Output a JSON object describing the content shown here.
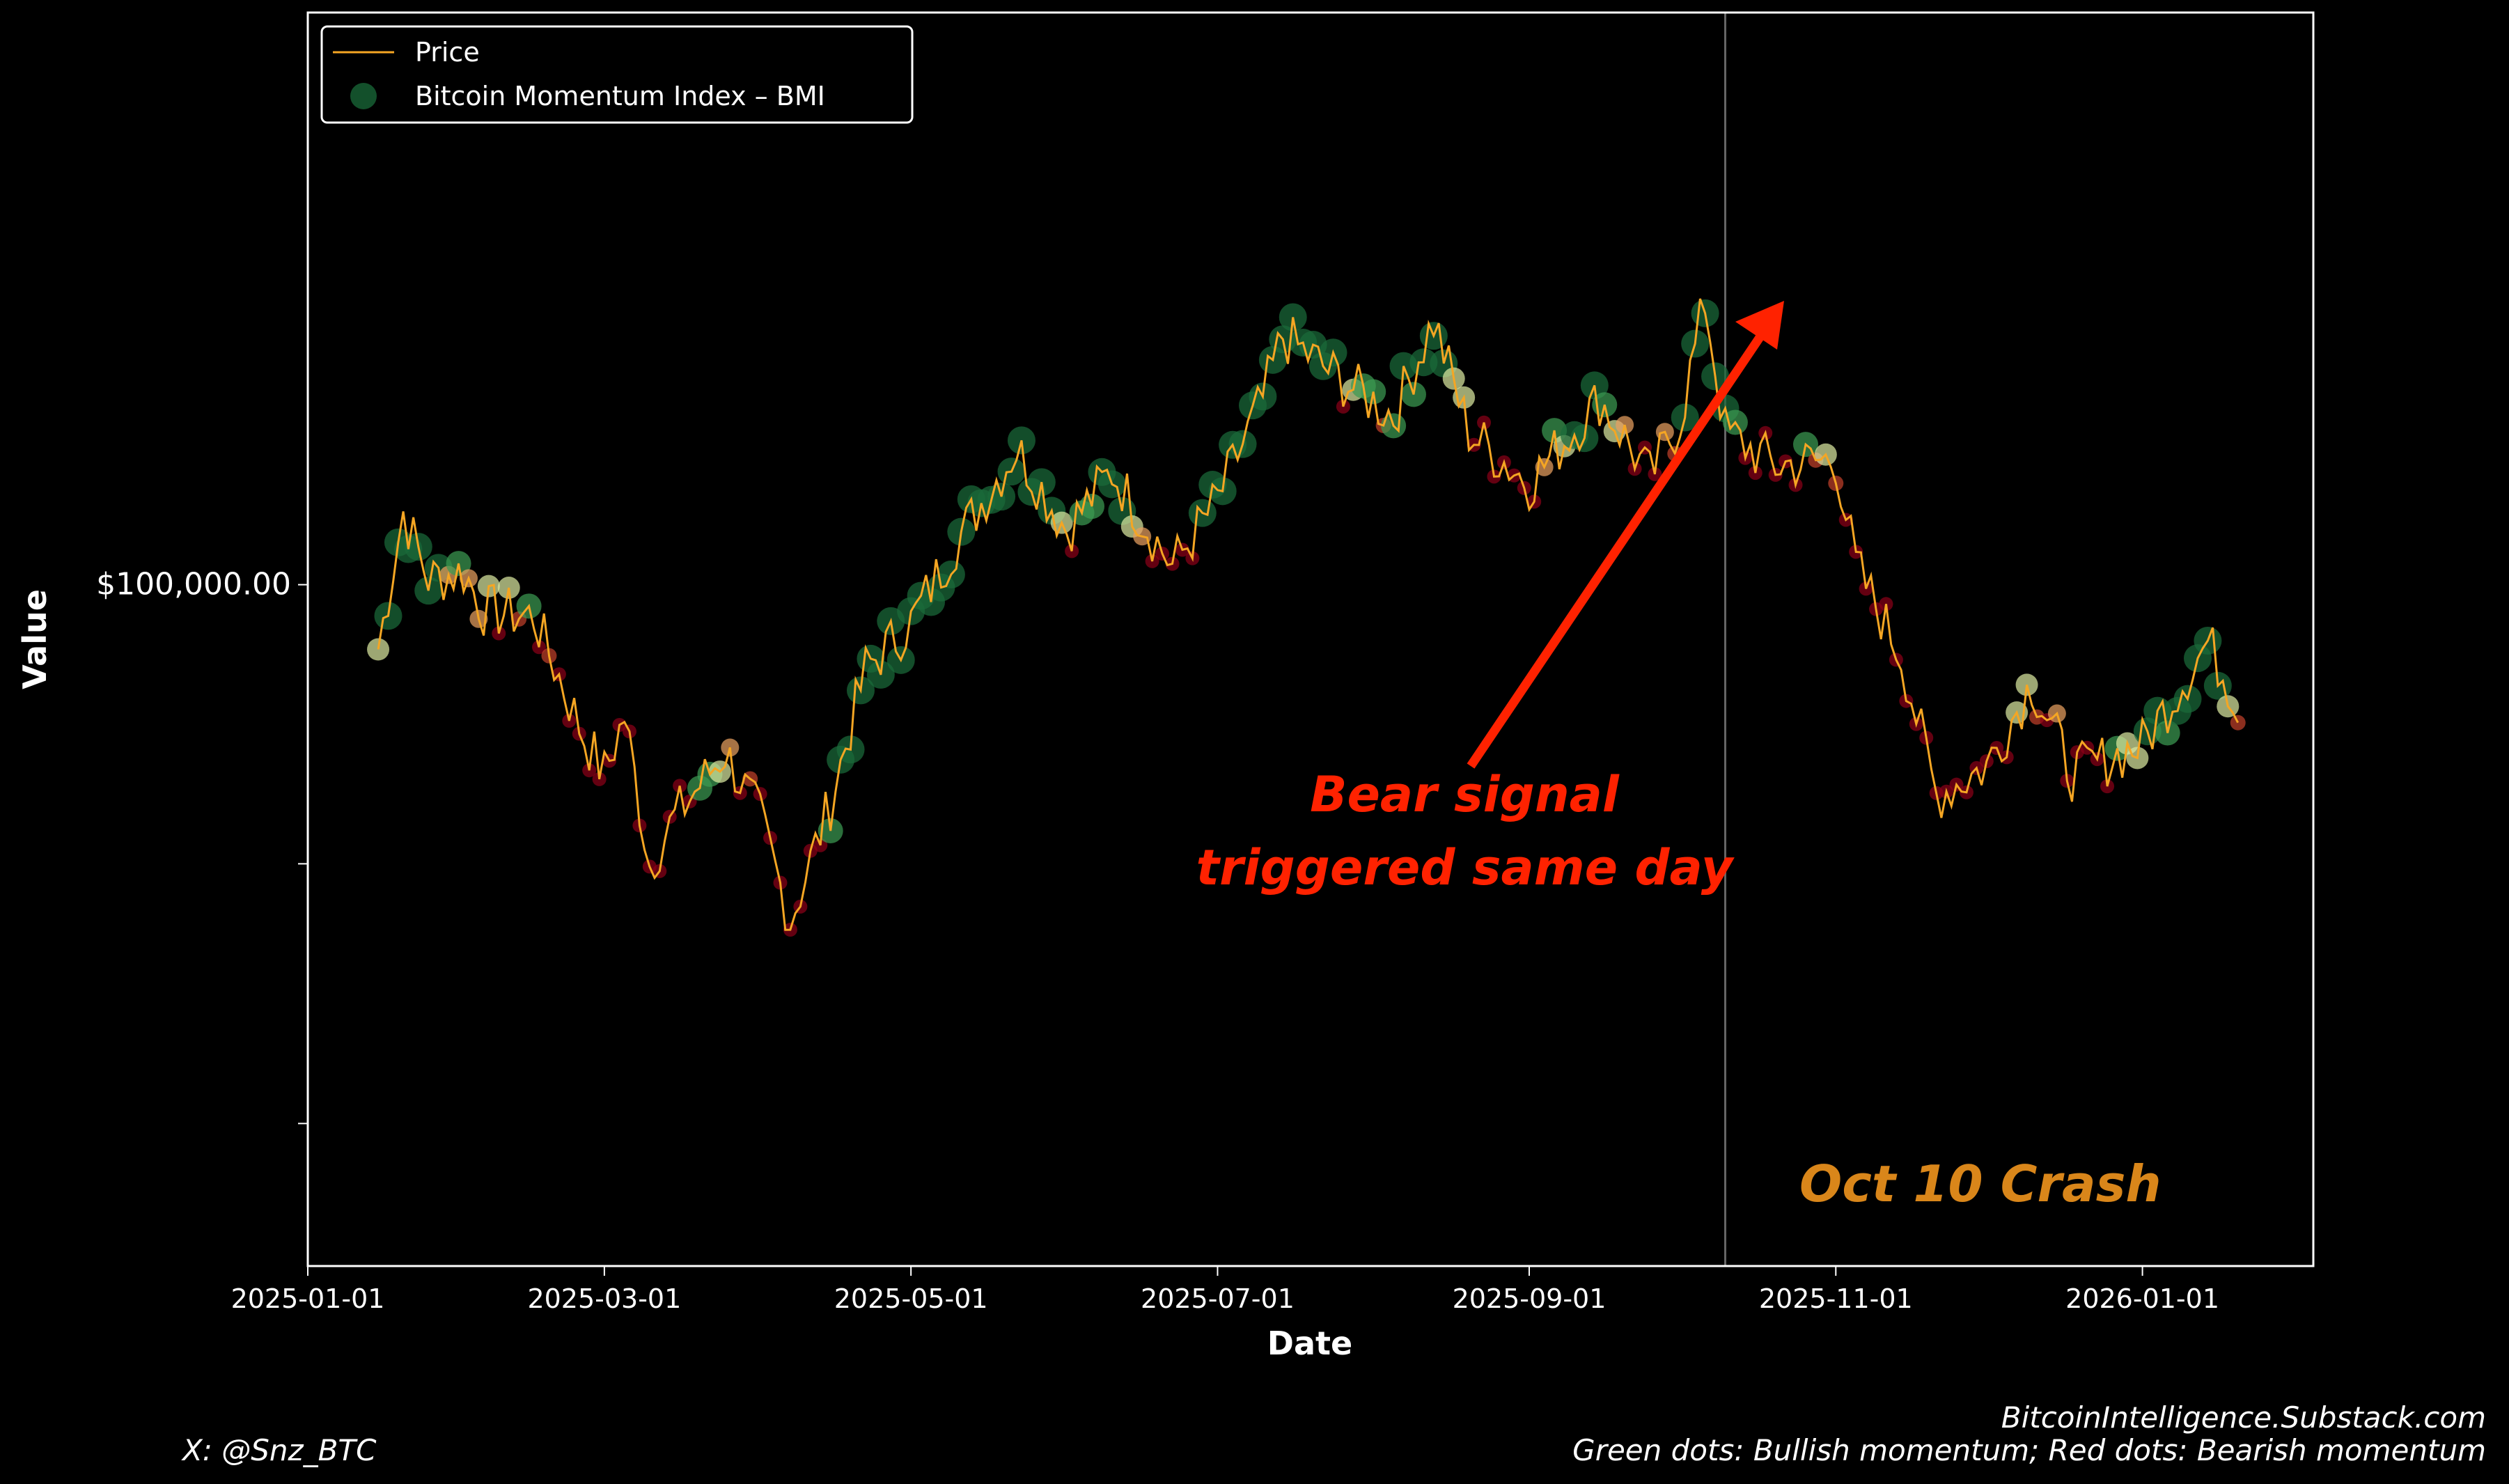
{
  "chart_data": {
    "type": "line",
    "ylabel": "Value",
    "xlabel": "Date",
    "y_scale": "log",
    "ylim": [
      58000,
      158000
    ],
    "y_ticks": [
      {
        "value": 100000,
        "label": "$100,000.00"
      },
      {
        "value": 80000,
        "label": ""
      },
      {
        "value": 65000,
        "label": ""
      }
    ],
    "x_ticks": [
      "2025-01-01",
      "2025-03-01",
      "2025-05-01",
      "2025-07-01",
      "2025-09-01",
      "2025-11-01",
      "2026-01-01"
    ],
    "xlim": [
      "2025-01-01",
      "2026-02-04"
    ],
    "legend": {
      "position": "top-left",
      "entries": [
        "Price",
        "Bitcoin Momentum Index – BMI"
      ]
    },
    "colors": {
      "price_line": "#f5a623",
      "bullish": "#1a6b3a",
      "neutral": "#f0e0a0",
      "bearish": "#a0001a",
      "annotation_red": "#ff2200",
      "crash_label": "#d9861a"
    },
    "series": [
      {
        "name": "Price",
        "values": [
          {
            "date": "2025-01-15",
            "price": 95000
          },
          {
            "date": "2025-01-20",
            "price": 106000
          },
          {
            "date": "2025-01-25",
            "price": 100500
          },
          {
            "date": "2025-02-01",
            "price": 101000
          },
          {
            "date": "2025-02-05",
            "price": 98000
          },
          {
            "date": "2025-02-15",
            "price": 97500
          },
          {
            "date": "2025-02-25",
            "price": 88500
          },
          {
            "date": "2025-03-01",
            "price": 86000
          },
          {
            "date": "2025-03-05",
            "price": 90000
          },
          {
            "date": "2025-03-10",
            "price": 80000
          },
          {
            "date": "2025-03-15",
            "price": 83000
          },
          {
            "date": "2025-03-25",
            "price": 87500
          },
          {
            "date": "2025-04-01",
            "price": 83000
          },
          {
            "date": "2025-04-07",
            "price": 76500
          },
          {
            "date": "2025-04-15",
            "price": 84000
          },
          {
            "date": "2025-04-22",
            "price": 93500
          },
          {
            "date": "2025-05-01",
            "price": 97000
          },
          {
            "date": "2025-05-10",
            "price": 103500
          },
          {
            "date": "2025-05-22",
            "price": 111500
          },
          {
            "date": "2025-06-01",
            "price": 104500
          },
          {
            "date": "2025-06-10",
            "price": 109500
          },
          {
            "date": "2025-06-22",
            "price": 101500
          },
          {
            "date": "2025-07-01",
            "price": 107000
          },
          {
            "date": "2025-07-10",
            "price": 116000
          },
          {
            "date": "2025-07-14",
            "price": 122000
          },
          {
            "date": "2025-07-25",
            "price": 118000
          },
          {
            "date": "2025-08-05",
            "price": 114500
          },
          {
            "date": "2025-08-13",
            "price": 123500
          },
          {
            "date": "2025-08-20",
            "price": 113000
          },
          {
            "date": "2025-09-01",
            "price": 108500
          },
          {
            "date": "2025-09-15",
            "price": 116000
          },
          {
            "date": "2025-09-25",
            "price": 109000
          },
          {
            "date": "2025-10-01",
            "price": 114000
          },
          {
            "date": "2025-10-06",
            "price": 125500
          },
          {
            "date": "2025-10-10",
            "price": 113000
          },
          {
            "date": "2025-10-20",
            "price": 110000
          },
          {
            "date": "2025-11-01",
            "price": 110500
          },
          {
            "date": "2025-11-05",
            "price": 101500
          },
          {
            "date": "2025-11-14",
            "price": 94500
          },
          {
            "date": "2025-11-21",
            "price": 84500
          },
          {
            "date": "2025-12-01",
            "price": 86500
          },
          {
            "date": "2025-12-10",
            "price": 92500
          },
          {
            "date": "2025-12-18",
            "price": 86000
          },
          {
            "date": "2026-01-01",
            "price": 88000
          },
          {
            "date": "2026-01-14",
            "price": 95500
          },
          {
            "date": "2026-01-20",
            "price": 91000
          }
        ]
      },
      {
        "name": "Bitcoin Momentum Index – BMI"
      }
    ],
    "vertical_line": {
      "date": "2025-10-10",
      "label": "Oct 10 Crash"
    },
    "annotation": {
      "line1": "Bear signal",
      "line2": "triggered same day",
      "target_date": "2025-10-10"
    }
  },
  "footer": {
    "left": "X: @Snz_BTC",
    "right_line1": "BitcoinIntelligence.Substack.com",
    "right_line2": "Green dots: Bullish momentum; Red dots: Bearish momentum"
  }
}
